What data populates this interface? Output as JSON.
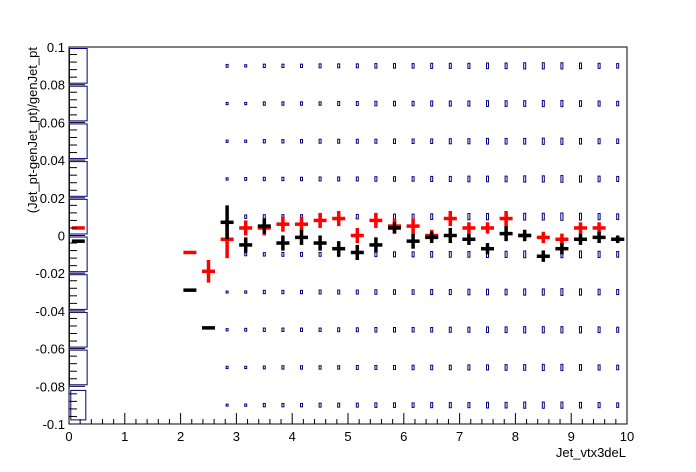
{
  "chart_data": {
    "type": "scatter",
    "title": "",
    "xlabel": "Jet_vtx3deL",
    "ylabel": "(Jet_pt-genJet_pt)/genJet_pt",
    "xlim": [
      0,
      10
    ],
    "ylim": [
      -0.1,
      0.1
    ],
    "x_ticks": [
      "0",
      "1",
      "2",
      "3",
      "4",
      "5",
      "6",
      "7",
      "8",
      "9",
      "10"
    ],
    "y_ticks": [
      "-0.1",
      "-0.08",
      "-0.06",
      "-0.04",
      "-0.02",
      "0",
      "0.02",
      "0.04",
      "0.06",
      "0.08",
      "0.1"
    ],
    "grid": false,
    "legend": "none",
    "bin_width": 0.3333,
    "series": [
      {
        "color": "#ff0000",
        "points": [
          {
            "x": 0.1667,
            "y": 0.004,
            "err": 0.0
          },
          {
            "x": 2.1667,
            "y": -0.009,
            "err": 0.0
          },
          {
            "x": 2.5,
            "y": -0.019,
            "err": 0.006
          },
          {
            "x": 2.8333,
            "y": -0.002,
            "err": 0.01
          },
          {
            "x": 3.1667,
            "y": 0.004,
            "err": 0.004
          },
          {
            "x": 3.5,
            "y": 0.004,
            "err": 0.004
          },
          {
            "x": 3.8333,
            "y": 0.006,
            "err": 0.004
          },
          {
            "x": 4.1667,
            "y": 0.006,
            "err": 0.004
          },
          {
            "x": 4.5,
            "y": 0.008,
            "err": 0.004
          },
          {
            "x": 4.8333,
            "y": 0.009,
            "err": 0.004
          },
          {
            "x": 5.1667,
            "y": 0.0,
            "err": 0.004
          },
          {
            "x": 5.5,
            "y": 0.008,
            "err": 0.004
          },
          {
            "x": 5.8333,
            "y": 0.005,
            "err": 0.004
          },
          {
            "x": 6.1667,
            "y": 0.005,
            "err": 0.004
          },
          {
            "x": 6.5,
            "y": 0.0,
            "err": 0.003
          },
          {
            "x": 6.8333,
            "y": 0.009,
            "err": 0.004
          },
          {
            "x": 7.1667,
            "y": 0.004,
            "err": 0.003
          },
          {
            "x": 7.5,
            "y": 0.004,
            "err": 0.003
          },
          {
            "x": 7.8333,
            "y": 0.009,
            "err": 0.004
          },
          {
            "x": 8.1667,
            "y": 0.0,
            "err": 0.003
          },
          {
            "x": 8.5,
            "y": -0.001,
            "err": 0.003
          },
          {
            "x": 8.8333,
            "y": -0.002,
            "err": 0.003
          },
          {
            "x": 9.1667,
            "y": 0.004,
            "err": 0.003
          },
          {
            "x": 9.5,
            "y": 0.004,
            "err": 0.003
          },
          {
            "x": 9.8333,
            "y": -0.002,
            "err": 0.002
          }
        ]
      },
      {
        "color": "#000000",
        "points": [
          {
            "x": 0.1667,
            "y": -0.003,
            "err": 0.0
          },
          {
            "x": 2.1667,
            "y": -0.029,
            "err": 0.0
          },
          {
            "x": 2.5,
            "y": -0.049,
            "err": 0.0
          },
          {
            "x": 2.8333,
            "y": 0.007,
            "err": 0.009
          },
          {
            "x": 3.1667,
            "y": -0.005,
            "err": 0.004
          },
          {
            "x": 3.5,
            "y": 0.005,
            "err": 0.004
          },
          {
            "x": 3.8333,
            "y": -0.004,
            "err": 0.004
          },
          {
            "x": 4.1667,
            "y": -0.001,
            "err": 0.004
          },
          {
            "x": 4.5,
            "y": -0.004,
            "err": 0.004
          },
          {
            "x": 4.8333,
            "y": -0.007,
            "err": 0.004
          },
          {
            "x": 5.1667,
            "y": -0.009,
            "err": 0.004
          },
          {
            "x": 5.5,
            "y": -0.005,
            "err": 0.004
          },
          {
            "x": 5.8333,
            "y": 0.004,
            "err": 0.003
          },
          {
            "x": 6.1667,
            "y": -0.003,
            "err": 0.004
          },
          {
            "x": 6.5,
            "y": -0.001,
            "err": 0.003
          },
          {
            "x": 6.8333,
            "y": 0.0,
            "err": 0.004
          },
          {
            "x": 7.1667,
            "y": -0.002,
            "err": 0.003
          },
          {
            "x": 7.5,
            "y": -0.007,
            "err": 0.003
          },
          {
            "x": 7.8333,
            "y": 0.001,
            "err": 0.004
          },
          {
            "x": 8.1667,
            "y": 0.0,
            "err": 0.003
          },
          {
            "x": 8.5,
            "y": -0.011,
            "err": 0.003
          },
          {
            "x": 8.8333,
            "y": -0.007,
            "err": 0.003
          },
          {
            "x": 9.1667,
            "y": -0.002,
            "err": 0.003
          },
          {
            "x": 9.5,
            "y": -0.001,
            "err": 0.003
          },
          {
            "x": 9.8333,
            "y": -0.002,
            "err": 0.002
          }
        ]
      }
    ],
    "box_series": {
      "color": "#000080",
      "y_rows": [
        -0.09,
        -0.07,
        -0.05,
        -0.03,
        -0.01,
        0.01,
        0.03,
        0.05,
        0.07,
        0.09
      ],
      "columns": [
        {
          "x": 2.8333,
          "sizes": [
            0.15,
            0.2,
            0.2,
            0.15,
            0.2,
            0.2,
            0.2,
            0.2,
            0.2,
            0.25
          ]
        },
        {
          "x": 3.1667,
          "sizes": [
            0.2,
            0.2,
            0.25,
            0.2,
            0.25,
            0.3,
            0.25,
            0.2,
            0.2,
            0.2
          ]
        },
        {
          "x": 3.5,
          "sizes": [
            0.3,
            0.25,
            0.3,
            0.3,
            0.3,
            0.35,
            0.3,
            0.3,
            0.3,
            0.3
          ]
        },
        {
          "x": 3.8333,
          "sizes": [
            0.3,
            0.3,
            0.3,
            0.3,
            0.35,
            0.35,
            0.3,
            0.3,
            0.3,
            0.3
          ]
        },
        {
          "x": 4.1667,
          "sizes": [
            0.3,
            0.3,
            0.3,
            0.3,
            0.35,
            0.35,
            0.3,
            0.3,
            0.3,
            0.3
          ]
        },
        {
          "x": 4.5,
          "sizes": [
            0.35,
            0.3,
            0.3,
            0.35,
            0.35,
            0.4,
            0.35,
            0.35,
            0.3,
            0.35
          ]
        },
        {
          "x": 4.8333,
          "sizes": [
            0.35,
            0.3,
            0.35,
            0.35,
            0.4,
            0.4,
            0.35,
            0.35,
            0.35,
            0.35
          ]
        },
        {
          "x": 5.1667,
          "sizes": [
            0.35,
            0.35,
            0.35,
            0.35,
            0.4,
            0.4,
            0.35,
            0.35,
            0.35,
            0.35
          ]
        },
        {
          "x": 5.5,
          "sizes": [
            0.4,
            0.35,
            0.4,
            0.4,
            0.4,
            0.45,
            0.4,
            0.35,
            0.4,
            0.4
          ]
        },
        {
          "x": 5.8333,
          "sizes": [
            0.4,
            0.35,
            0.4,
            0.4,
            0.45,
            0.45,
            0.4,
            0.4,
            0.4,
            0.4
          ]
        },
        {
          "x": 6.1667,
          "sizes": [
            0.4,
            0.4,
            0.4,
            0.4,
            0.45,
            0.45,
            0.4,
            0.4,
            0.4,
            0.4
          ]
        },
        {
          "x": 6.5,
          "sizes": [
            0.45,
            0.4,
            0.4,
            0.45,
            0.5,
            0.5,
            0.45,
            0.4,
            0.45,
            0.45
          ]
        },
        {
          "x": 6.8333,
          "sizes": [
            0.45,
            0.4,
            0.45,
            0.45,
            0.5,
            0.5,
            0.45,
            0.45,
            0.45,
            0.45
          ]
        },
        {
          "x": 7.1667,
          "sizes": [
            0.45,
            0.45,
            0.45,
            0.5,
            0.5,
            0.55,
            0.5,
            0.45,
            0.45,
            0.45
          ]
        },
        {
          "x": 7.5,
          "sizes": [
            0.5,
            0.45,
            0.5,
            0.5,
            0.55,
            0.55,
            0.5,
            0.5,
            0.5,
            0.5
          ]
        },
        {
          "x": 7.8333,
          "sizes": [
            0.5,
            0.5,
            0.5,
            0.5,
            0.55,
            0.55,
            0.5,
            0.5,
            0.5,
            0.5
          ]
        },
        {
          "x": 8.1667,
          "sizes": [
            0.55,
            0.5,
            0.55,
            0.55,
            0.6,
            0.6,
            0.55,
            0.5,
            0.5,
            0.55
          ]
        },
        {
          "x": 8.5,
          "sizes": [
            0.55,
            0.55,
            0.55,
            0.55,
            0.6,
            0.6,
            0.55,
            0.55,
            0.55,
            0.55
          ]
        },
        {
          "x": 8.8333,
          "sizes": [
            0.55,
            0.55,
            0.55,
            0.6,
            0.6,
            0.65,
            0.6,
            0.55,
            0.55,
            0.55
          ]
        },
        {
          "x": 9.1667,
          "sizes": [
            0.5,
            0.5,
            0.55,
            0.55,
            0.6,
            0.6,
            0.55,
            0.5,
            0.5,
            0.5
          ]
        },
        {
          "x": 9.5,
          "sizes": [
            0.45,
            0.45,
            0.5,
            0.5,
            0.55,
            0.55,
            0.5,
            0.45,
            0.45,
            0.45
          ]
        },
        {
          "x": 9.8333,
          "sizes": [
            0.4,
            0.4,
            0.45,
            0.45,
            0.5,
            0.5,
            0.45,
            0.4,
            0.4,
            0.4
          ]
        }
      ],
      "left_column": {
        "x": 0.1667,
        "rows": [
          {
            "y": -0.09,
            "size": 0.85
          },
          {
            "y": -0.07,
            "size": 1.0
          },
          {
            "y": -0.05,
            "size": 1.0
          },
          {
            "y": -0.03,
            "size": 1.0
          },
          {
            "y": -0.01,
            "size": 1.0
          },
          {
            "y": 0.01,
            "size": 1.0
          },
          {
            "y": 0.03,
            "size": 1.0
          },
          {
            "y": 0.05,
            "size": 1.0
          },
          {
            "y": 0.07,
            "size": 1.0
          },
          {
            "y": 0.09,
            "size": 1.0
          }
        ]
      }
    }
  }
}
